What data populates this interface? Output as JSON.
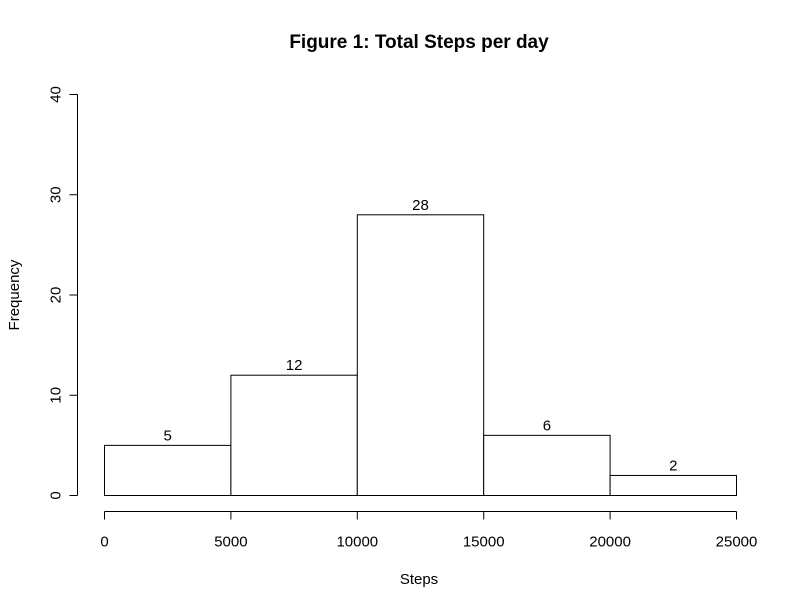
{
  "chart_data": {
    "type": "bar",
    "title": "Figure 1: Total Steps per day",
    "xlabel": "Steps",
    "ylabel": "Frequency",
    "bins": [
      {
        "from": 0,
        "to": 5000,
        "count": 5,
        "label": "5"
      },
      {
        "from": 5000,
        "to": 10000,
        "count": 12,
        "label": "12"
      },
      {
        "from": 10000,
        "to": 15000,
        "count": 28,
        "label": "28"
      },
      {
        "from": 15000,
        "to": 20000,
        "count": 6,
        "label": "6"
      },
      {
        "from": 20000,
        "to": 25000,
        "count": 2,
        "label": "2"
      }
    ],
    "xlim": [
      0,
      25000
    ],
    "ylim": [
      0,
      40
    ],
    "x_ticks": [
      {
        "value": 0,
        "label": "0"
      },
      {
        "value": 5000,
        "label": "5000"
      },
      {
        "value": 10000,
        "label": "10000"
      },
      {
        "value": 15000,
        "label": "15000"
      },
      {
        "value": 20000,
        "label": "20000"
      },
      {
        "value": 25000,
        "label": "25000"
      }
    ],
    "y_ticks": [
      {
        "value": 0,
        "label": "0"
      },
      {
        "value": 10,
        "label": "10"
      },
      {
        "value": 20,
        "label": "20"
      },
      {
        "value": 30,
        "label": "30"
      },
      {
        "value": 40,
        "label": "40"
      }
    ],
    "grid": false,
    "legend": "none",
    "colors": {
      "bar_fill": "#ffffff",
      "bar_stroke": "#000000",
      "axis": "#000000"
    }
  }
}
